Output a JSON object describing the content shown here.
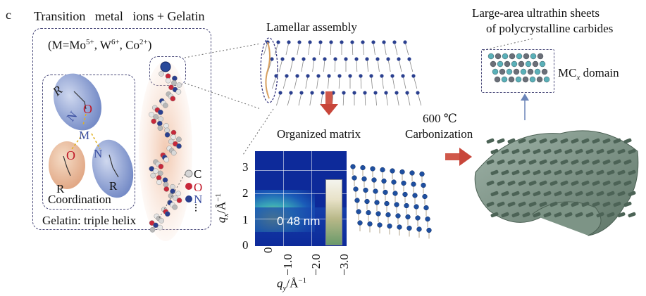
{
  "panel_label": "c",
  "title_left": "Transition   metal   ions + Gelatin",
  "metal_list": {
    "prefix": "(M=Mo",
    "sup1": "5+",
    "mid1": ", W",
    "sup2": "6+",
    "mid2": ", Co",
    "sup3": "2+",
    "suffix": ")"
  },
  "coordination_label": "Coordination",
  "gelatin_label": "Gelatin: triple helix",
  "legend": {
    "c": "C",
    "o": "O",
    "n": "N",
    "more": "..."
  },
  "atom_letters": {
    "r_top": "R",
    "o_top": "O",
    "n_top": "N",
    "m": "M",
    "o_bottom": "O",
    "n_bottom": "N",
    "r_left": "R",
    "r_right": "R"
  },
  "lamellar_label": "Lamellar assembly",
  "matrix_label": "Organized matrix",
  "temperature_label": "600 ℃",
  "carbonization_label": "Carbonization",
  "sheets_title_line1": "Large-area ultrathin sheets",
  "sheets_title_line2": "of polycrystalline carbides",
  "domain_label_prefix": "MC",
  "domain_label_sub": "x",
  "domain_label_suffix": " domain",
  "saxs": {
    "ylabel_main": "q",
    "ylabel_sub": "x",
    "ylabel_unit": "/Å",
    "ylabel_exp": "−1",
    "xlabel_main": "q",
    "xlabel_sub": "y",
    "xlabel_unit": "/Å",
    "xlabel_exp": "−1",
    "y_ticks": [
      "0",
      "1",
      "2",
      "3"
    ],
    "x_ticks": [
      "0",
      "−1.0",
      "−2.0",
      "−3.0"
    ],
    "annotation": "0 48 nm"
  },
  "colors": {
    "dash_border": "#4a4a7a",
    "arrow_red": "#c8463a",
    "arrow_blue": "#6a84b8",
    "heatmap_bg": "#0d2a9a"
  }
}
